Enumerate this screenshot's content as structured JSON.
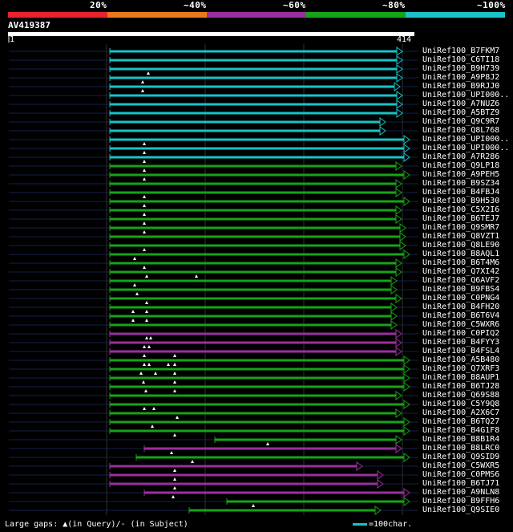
{
  "identity_legend": {
    "labels": [
      "20%",
      "~40%",
      "~60%",
      "~80%",
      "~100%"
    ],
    "colors": [
      "#e8222e",
      "#e87a1c",
      "#9a2fa0",
      "#17a317",
      "#19c3c8"
    ]
  },
  "query": {
    "id": "AV419387",
    "start": "1",
    "end": "414",
    "length": 414
  },
  "footer": {
    "gaps_text": "Large gaps: ▲(in Query)/- (in Subject)",
    "scale_text": "=100char."
  },
  "hits": [
    {
      "label": "UniRef100_B7FKM7",
      "color": "cyan",
      "start": 137,
      "end": 495,
      "dots": []
    },
    {
      "label": "UniRef100_C6TI18",
      "color": "cyan",
      "start": 137,
      "end": 495,
      "dots": []
    },
    {
      "label": "UniRef100_B9H739",
      "color": "cyan",
      "start": 137,
      "end": 495,
      "dots": [
        185
      ]
    },
    {
      "label": "UniRef100_A9P8J2",
      "color": "cyan",
      "start": 137,
      "end": 495,
      "dots": [
        178
      ]
    },
    {
      "label": "UniRef100_B9RJJ0",
      "color": "cyan",
      "start": 137,
      "end": 492,
      "dots": [
        178
      ]
    },
    {
      "label": "UniRef100_UPI000..",
      "color": "cyan",
      "start": 137,
      "end": 495,
      "dots": []
    },
    {
      "label": "UniRef100_A7NUZ6",
      "color": "cyan",
      "start": 137,
      "end": 495,
      "dots": []
    },
    {
      "label": "UniRef100_A5BTZ9",
      "color": "cyan",
      "start": 137,
      "end": 495,
      "dots": []
    },
    {
      "label": "UniRef100_Q9C9R7",
      "color": "cyan",
      "start": 137,
      "end": 474,
      "dots": []
    },
    {
      "label": "UniRef100_Q8L768",
      "color": "cyan",
      "start": 137,
      "end": 474,
      "dots": []
    },
    {
      "label": "UniRef100_UPI000..",
      "color": "cyan",
      "start": 137,
      "end": 504,
      "dots": [
        180
      ]
    },
    {
      "label": "UniRef100_UPI000..",
      "color": "cyan",
      "start": 137,
      "end": 504,
      "dots": [
        180
      ]
    },
    {
      "label": "UniRef100_A7R286",
      "color": "cyan",
      "start": 137,
      "end": 504,
      "dots": [
        180
      ]
    },
    {
      "label": "UniRef100_Q9LP18",
      "color": "green",
      "start": 137,
      "end": 494,
      "dots": [
        180
      ]
    },
    {
      "label": "UniRef100_A9PEH5",
      "color": "green",
      "start": 137,
      "end": 504,
      "dots": [
        180
      ]
    },
    {
      "label": "UniRef100_B9SZ34",
      "color": "green",
      "start": 137,
      "end": 494,
      "dots": []
    },
    {
      "label": "UniRef100_B4FBJ4",
      "color": "green",
      "start": 137,
      "end": 494,
      "dots": [
        180
      ]
    },
    {
      "label": "UniRef100_B9H530",
      "color": "green",
      "start": 137,
      "end": 504,
      "dots": [
        180
      ]
    },
    {
      "label": "UniRef100_C5X2I6",
      "color": "green",
      "start": 137,
      "end": 494,
      "dots": [
        180
      ]
    },
    {
      "label": "UniRef100_B6TEJ7",
      "color": "green",
      "start": 137,
      "end": 494,
      "dots": [
        180
      ]
    },
    {
      "label": "UniRef100_Q9SMR7",
      "color": "green",
      "start": 137,
      "end": 499,
      "dots": [
        180
      ]
    },
    {
      "label": "UniRef100_Q8VZT1",
      "color": "green",
      "start": 137,
      "end": 499,
      "dots": []
    },
    {
      "label": "UniRef100_Q8LE90",
      "color": "green",
      "start": 137,
      "end": 499,
      "dots": [
        180
      ]
    },
    {
      "label": "UniRef100_B8AQL1",
      "color": "green",
      "start": 137,
      "end": 504,
      "dots": [
        168
      ]
    },
    {
      "label": "UniRef100_B6T4M6",
      "color": "green",
      "start": 137,
      "end": 494,
      "dots": [
        180
      ]
    },
    {
      "label": "UniRef100_Q7XI42",
      "color": "green",
      "start": 137,
      "end": 494,
      "dots": [
        183,
        245
      ]
    },
    {
      "label": "UniRef100_Q6AVF2",
      "color": "green",
      "start": 137,
      "end": 488,
      "dots": [
        168
      ]
    },
    {
      "label": "UniRef100_B9FBS4",
      "color": "green",
      "start": 137,
      "end": 488,
      "dots": [
        171
      ]
    },
    {
      "label": "UniRef100_C0PNG4",
      "color": "green",
      "start": 137,
      "end": 494,
      "dots": [
        183
      ]
    },
    {
      "label": "UniRef100_B4FH20",
      "color": "green",
      "start": 137,
      "end": 488,
      "dots": [
        166,
        183
      ]
    },
    {
      "label": "UniRef100_B6T6V4",
      "color": "green",
      "start": 137,
      "end": 488,
      "dots": [
        166,
        183
      ]
    },
    {
      "label": "UniRef100_C5WXR6",
      "color": "green",
      "start": 137,
      "end": 488,
      "dots": []
    },
    {
      "label": "UniRef100_C0PIQ2",
      "color": "purple",
      "start": 137,
      "end": 494,
      "dots": [
        183,
        188
      ]
    },
    {
      "label": "UniRef100_B4FYY3",
      "color": "purple",
      "start": 137,
      "end": 494,
      "dots": [
        180,
        186
      ]
    },
    {
      "label": "UniRef100_B4FSL4",
      "color": "purple",
      "start": 137,
      "end": 494,
      "dots": [
        180,
        218
      ]
    },
    {
      "label": "UniRef100_A5B480",
      "color": "green",
      "start": 137,
      "end": 504,
      "dots": [
        180,
        186,
        210,
        218
      ]
    },
    {
      "label": "UniRef100_Q7XRF3",
      "color": "green",
      "start": 137,
      "end": 504,
      "dots": [
        176,
        194,
        218
      ]
    },
    {
      "label": "UniRef100_B8AUP1",
      "color": "green",
      "start": 137,
      "end": 504,
      "dots": [
        179,
        218
      ]
    },
    {
      "label": "UniRef100_B6TJ28",
      "color": "green",
      "start": 137,
      "end": 504,
      "dots": [
        182,
        218
      ]
    },
    {
      "label": "UniRef100_Q69S88",
      "color": "green",
      "start": 137,
      "end": 494,
      "dots": []
    },
    {
      "label": "UniRef100_C5Y9Q8",
      "color": "green",
      "start": 137,
      "end": 504,
      "dots": [
        180,
        192
      ]
    },
    {
      "label": "UniRef100_A2X6C7",
      "color": "green",
      "start": 137,
      "end": 494,
      "dots": [
        221
      ]
    },
    {
      "label": "UniRef100_B6TQ27",
      "color": "green",
      "start": 137,
      "end": 504,
      "dots": [
        190
      ]
    },
    {
      "label": "UniRef100_B4G1F8",
      "color": "green",
      "start": 137,
      "end": 504,
      "dots": [
        218
      ]
    },
    {
      "label": "UniRef100_B8B1R4",
      "color": "green",
      "start": 268,
      "end": 494,
      "dots": [
        334
      ]
    },
    {
      "label": "UniRef100_B8LRC0",
      "color": "purple",
      "start": 180,
      "end": 494,
      "dots": [
        214
      ]
    },
    {
      "label": "UniRef100_Q9SID9",
      "color": "green",
      "start": 170,
      "end": 504,
      "dots": [
        240
      ]
    },
    {
      "label": "UniRef100_C5WXR5",
      "color": "purple",
      "start": 137,
      "end": 445,
      "dots": [
        218
      ]
    },
    {
      "label": "UniRef100_C0PMS6",
      "color": "purple",
      "start": 137,
      "end": 471,
      "dots": [
        218
      ]
    },
    {
      "label": "UniRef100_B6TJ71",
      "color": "purple",
      "start": 137,
      "end": 471,
      "dots": [
        218
      ]
    },
    {
      "label": "UniRef100_A9NLN8",
      "color": "purple",
      "start": 180,
      "end": 504,
      "dots": [
        216
      ]
    },
    {
      "label": "UniRef100_B9FFH6",
      "color": "green",
      "start": 283,
      "end": 504,
      "dots": [
        316
      ]
    },
    {
      "label": "UniRef100_Q9SIE0",
      "color": "green",
      "start": 236,
      "end": 468,
      "dots": []
    }
  ]
}
